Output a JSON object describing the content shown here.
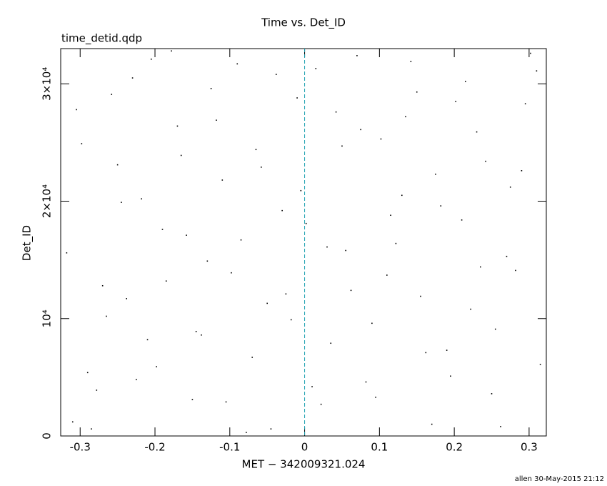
{
  "chart_data": {
    "type": "scatter",
    "title": "Time vs. Det_ID",
    "subtitle": "time_detid.qdp",
    "x_label": "MET − 342009321.024",
    "y_label": "Det_ID",
    "footer": "allen 30-May-2015 21:12",
    "color": "#000000",
    "marker_line": {
      "x": 0,
      "color": "#1a9fb0"
    },
    "xlim": [
      -0.326,
      0.323
    ],
    "ylim": [
      0,
      33000
    ],
    "xticks": [
      -0.3,
      -0.2,
      -0.1,
      0,
      0.1,
      0.2,
      0.3
    ],
    "yticks": [
      0,
      {
        "value": 10000,
        "label": "10⁴"
      },
      {
        "value": 20000,
        "label": "2×10⁴"
      },
      {
        "value": 30000,
        "label": "3×10⁴"
      }
    ],
    "x": [
      -0.31,
      -0.29,
      -0.27,
      -0.25,
      -0.23,
      -0.21,
      -0.19,
      -0.17,
      -0.15,
      -0.13,
      -0.11,
      -0.09,
      -0.07,
      -0.05,
      -0.03,
      -0.01,
      0.01,
      0.03,
      0.05,
      0.07,
      0.09,
      0.11,
      0.13,
      0.15,
      0.17,
      0.19,
      0.21,
      0.23,
      0.25,
      0.27,
      0.29,
      0.31,
      -0.305,
      -0.285,
      -0.265,
      -0.245,
      -0.225,
      -0.205,
      -0.185,
      -0.165,
      -0.145,
      -0.125,
      -0.105,
      -0.085,
      -0.065,
      -0.045,
      -0.025,
      -0.005,
      0.015,
      0.035,
      0.055,
      0.075,
      0.095,
      0.115,
      0.135,
      0.155,
      0.175,
      0.195,
      0.215,
      0.235,
      0.255,
      0.275,
      0.295,
      0.315,
      -0.318,
      -0.298,
      -0.278,
      -0.258,
      -0.238,
      -0.218,
      -0.198,
      -0.178,
      -0.158,
      -0.138,
      -0.118,
      -0.098,
      -0.078,
      -0.058,
      -0.038,
      -0.018,
      0.002,
      0.022,
      0.042,
      0.062,
      0.082,
      0.102,
      0.122,
      0.142,
      0.162,
      0.182,
      0.202,
      0.222,
      0.242,
      0.262,
      0.282,
      0.302
    ],
    "y": [
      1200,
      5400,
      12800,
      23100,
      30500,
      8200,
      17600,
      26400,
      3100,
      14900,
      21800,
      31700,
      6700,
      11300,
      19200,
      28800,
      4200,
      16100,
      24700,
      32400,
      9600,
      13700,
      20500,
      29300,
      1000,
      7300,
      18400,
      25900,
      3600,
      15300,
      22600,
      31100,
      27800,
      600,
      10200,
      19900,
      4800,
      32100,
      13200,
      23900,
      8900,
      29600,
      2900,
      16700,
      24400,
      600,
      12100,
      20900,
      31300,
      7900,
      15800,
      26100,
      3300,
      18800,
      27200,
      11900,
      22300,
      5100,
      30200,
      14400,
      9100,
      21200,
      28300,
      6100,
      15600,
      24900,
      3900,
      29100,
      11700,
      20200,
      5900,
      32800,
      17100,
      8600,
      26900,
      13900,
      300,
      22900,
      30800,
      9900,
      18100,
      2700,
      27600,
      12400,
      4600,
      25300,
      16400,
      31900,
      7100,
      19600,
      28500,
      10800,
      23400,
      800,
      14100,
      32600
    ]
  }
}
